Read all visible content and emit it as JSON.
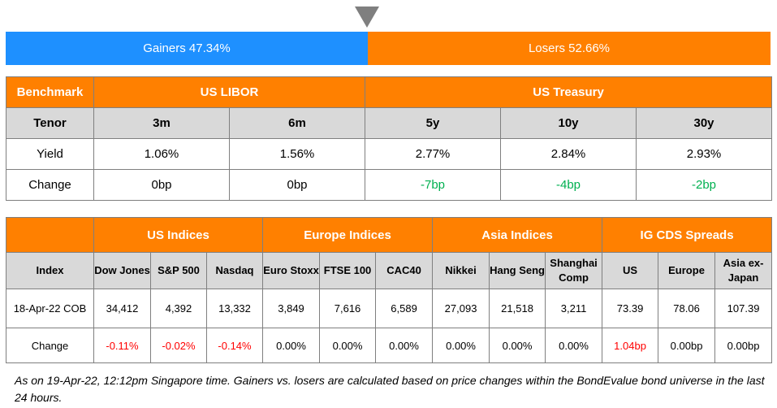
{
  "ratio": {
    "gainers_label": "Gainers 47.34%",
    "losers_label": "Losers 52.66%",
    "gainers_fraction": 0.4734,
    "gainers_color": "#1e90ff",
    "losers_color": "#ff8000"
  },
  "rates": {
    "benchmark_label": "Benchmark",
    "libor_label": "US LIBOR",
    "treasury_label": "US Treasury",
    "tenor_label": "Tenor",
    "tenors": [
      "3m",
      "6m",
      "5y",
      "10y",
      "30y"
    ],
    "yield_label": "Yield",
    "yields": [
      "1.06%",
      "1.56%",
      "2.77%",
      "2.84%",
      "2.93%"
    ],
    "change_label": "Change",
    "changes": [
      "0bp",
      "0bp",
      "-7bp",
      "-4bp",
      "-2bp"
    ]
  },
  "indices": {
    "groups": [
      "US Indices",
      "Europe Indices",
      "Asia Indices",
      "IG CDS Spreads"
    ],
    "index_label": "Index",
    "columns": [
      "Dow Jones",
      "S&P 500",
      "Nasdaq",
      "Euro Stoxx",
      "FTSE 100",
      "CAC40",
      "Nikkei",
      "Hang Seng",
      "Shanghai Comp",
      "US",
      "Europe",
      "Asia ex-Japan"
    ],
    "close_label": "18-Apr-22 COB",
    "closes": [
      "34,412",
      "4,392",
      "13,332",
      "3,849",
      "7,616",
      "6,589",
      "27,093",
      "21,518",
      "3,211",
      "73.39",
      "78.06",
      "107.39"
    ],
    "change_label": "Change",
    "changes": [
      "-0.11%",
      "-0.02%",
      "-0.14%",
      "0.00%",
      "0.00%",
      "0.00%",
      "0.00%",
      "0.00%",
      "0.00%",
      "1.04bp",
      "0.00bp",
      "0.00bp"
    ]
  },
  "footnote": "As on 19-Apr-22, 12:12pm Singapore time. Gainers vs. losers are calculated based on price changes within the BondEvalue bond universe in the last 24 hours.",
  "colors": {
    "orange": "#ff8000",
    "blue": "#1e90ff",
    "negative": "#ff0000",
    "positive": "#00b050"
  }
}
